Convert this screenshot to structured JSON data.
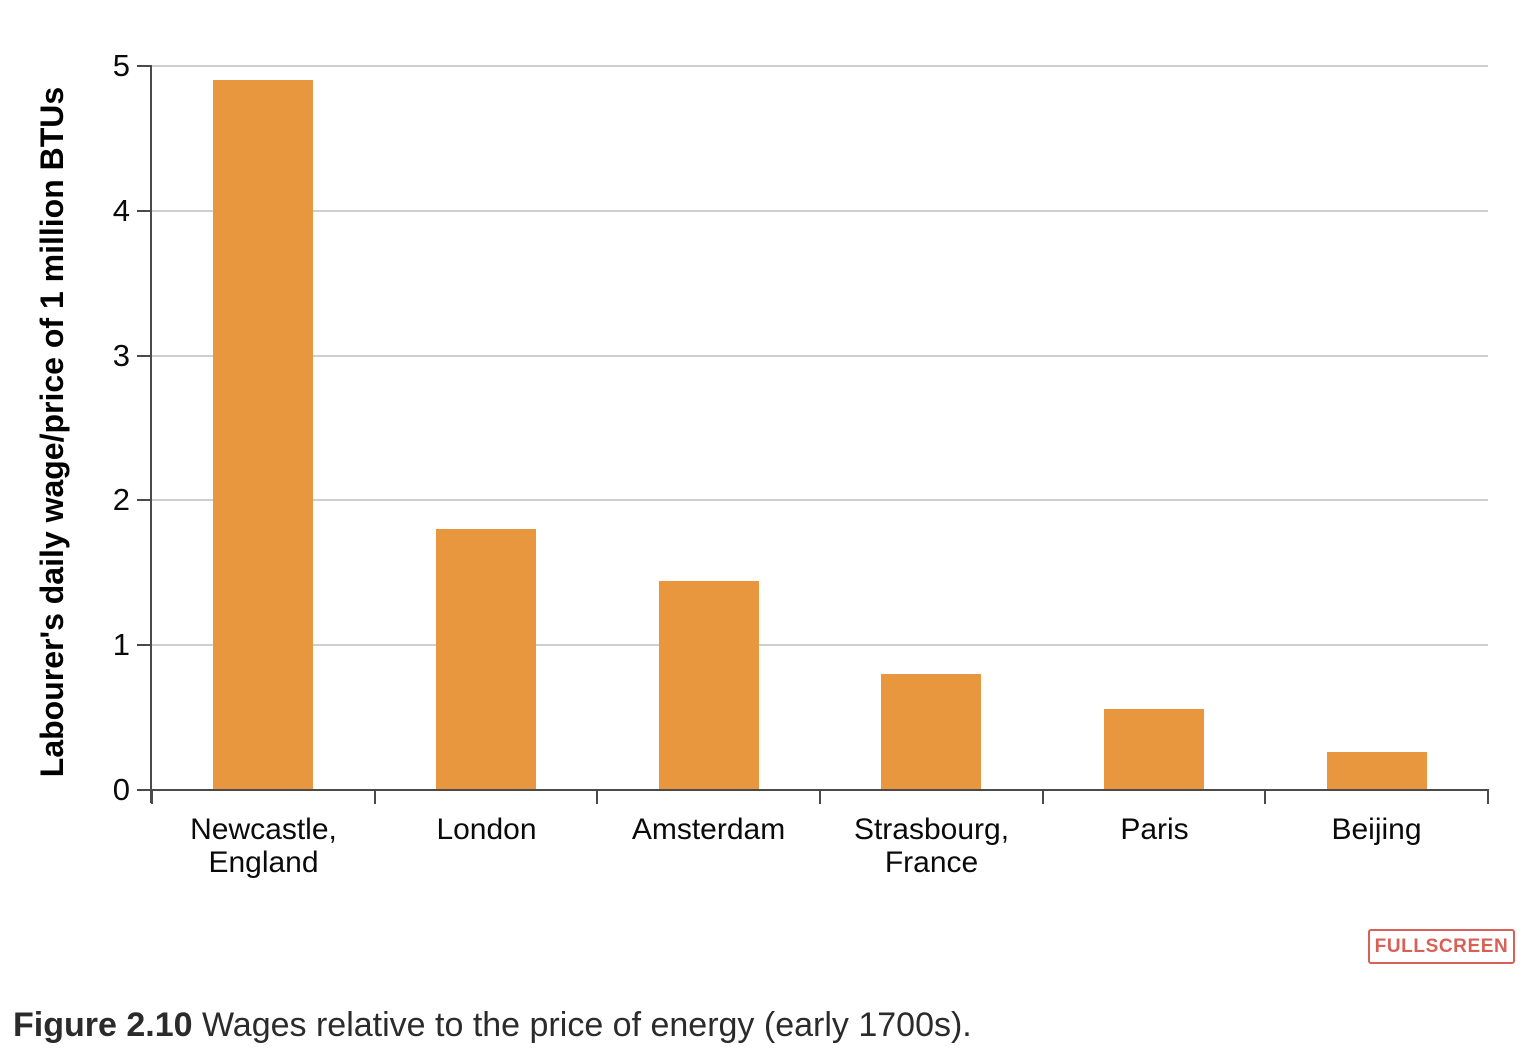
{
  "chart_data": {
    "type": "bar",
    "categories": [
      [
        "Newcastle,",
        "England"
      ],
      [
        "London"
      ],
      [
        "Amsterdam"
      ],
      [
        "Strasbourg,",
        "France"
      ],
      [
        "Paris"
      ],
      [
        "Beijing"
      ]
    ],
    "values": [
      4.9,
      1.8,
      1.44,
      0.8,
      0.56,
      0.26
    ],
    "title": "",
    "xlabel": "",
    "ylabel": "Labourer's daily wage/price of 1 million BTUs",
    "ylim": [
      0,
      5
    ],
    "yticks": [
      0,
      1,
      2,
      3,
      4,
      5
    ],
    "grid": "horizontal gridlines at each integer",
    "legend_position": "none",
    "bar_color": "#e8973f",
    "axis_color": "#4a4a4a",
    "gridline_color": "#cfcfcf"
  },
  "controls": {
    "fullscreen_label": "FULLSCREEN",
    "fullscreen_color": "#d96057"
  },
  "caption": {
    "label": "Figure 2.10",
    "text": " Wages relative to the price of energy (early 1700s)."
  }
}
